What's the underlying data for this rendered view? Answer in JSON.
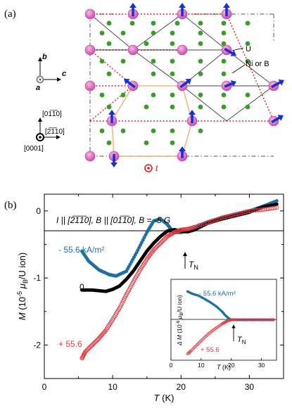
{
  "panel_a": {
    "label": "(a)",
    "axes_bc": {
      "b": "b",
      "c": "c",
      "a": "a"
    },
    "axes_hex": {
      "up": "[01̅1̅0]",
      "mid": "[2̅1̅10]",
      "out": "[0001]"
    },
    "legend": {
      "u": "U",
      "ni_b": "Ni or B"
    },
    "current": "t",
    "colors": {
      "uranium": "#e064b8",
      "nib": "#3a9a2a",
      "spin": "#1a2fd0",
      "hexagon": "#f2b77d",
      "dotted_red": "#e02020",
      "current": "#e02020"
    }
  },
  "panel_b": {
    "label": "(b)",
    "condition": "I || [2̅1̅1̅0], B || [01̅1̅0], B = -5 G",
    "labels": {
      "neg": "- 55.6 kA/m²",
      "zero": "0",
      "pos": "+ 55.6",
      "tn": "T",
      "tn_sub": "N"
    },
    "colors": {
      "neg": "#1f6fa3",
      "zero": "#000000",
      "pos": "#e0393e"
    }
  },
  "chart_data": [
    {
      "type": "scatter",
      "xlabel": "T (K)",
      "ylabel": "M (10⁻⁵ μB/U ion)",
      "xlim": [
        0,
        35
      ],
      "ylim": [
        -2.5,
        0.25
      ],
      "xticks": [
        "0",
        "10",
        "20",
        "30"
      ],
      "yticks": [
        "0",
        "-1",
        "-2"
      ],
      "series": [
        {
          "name": "- 55.6 kA/m²",
          "marker": "filled",
          "color": "#1f6fa3",
          "x": [
            5.5,
            6.5,
            8,
            9.5,
            10.5,
            12,
            13.5,
            15,
            16,
            17,
            18,
            18.5,
            19,
            20,
            21,
            22,
            23,
            24,
            26,
            28,
            30,
            32,
            34
          ],
          "y": [
            -0.6,
            -0.75,
            -0.88,
            -0.95,
            -0.97,
            -0.9,
            -0.62,
            -0.32,
            -0.15,
            -0.12,
            -0.2,
            -0.27,
            -0.32,
            -0.32,
            -0.3,
            -0.26,
            -0.2,
            -0.16,
            -0.1,
            -0.05,
            0.0,
            0.07,
            0.15
          ]
        },
        {
          "name": "0",
          "marker": "filled",
          "color": "#000000",
          "x": [
            5.5,
            7,
            9,
            10,
            11,
            12,
            13,
            14,
            15,
            16,
            17,
            18,
            19,
            20,
            21,
            22,
            24,
            26,
            28,
            30,
            32,
            34
          ],
          "y": [
            -1.18,
            -1.18,
            -1.2,
            -1.17,
            -1.12,
            -1.02,
            -0.9,
            -0.75,
            -0.6,
            -0.48,
            -0.38,
            -0.3,
            -0.28,
            -0.3,
            -0.31,
            -0.28,
            -0.18,
            -0.12,
            -0.07,
            -0.02,
            0.06,
            0.1
          ]
        },
        {
          "name": "+ 55.6",
          "marker": "open",
          "color": "#e0393e",
          "x": [
            5.5,
            6,
            7,
            8,
            9,
            10,
            11,
            12,
            13,
            14,
            15,
            16,
            17,
            18,
            19,
            20,
            21,
            22,
            24,
            26,
            28,
            30,
            32,
            34
          ],
          "y": [
            -2.2,
            -2.1,
            -2.0,
            -1.9,
            -1.78,
            -1.62,
            -1.45,
            -1.25,
            -1.06,
            -0.88,
            -0.72,
            -0.58,
            -0.48,
            -0.38,
            -0.32,
            -0.28,
            -0.27,
            -0.24,
            -0.17,
            -0.1,
            -0.05,
            0.0,
            0.02,
            0.05
          ]
        }
      ]
    },
    {
      "type": "scatter",
      "xlabel": "T (K)",
      "ylabel": "ΔM (10⁻⁶ μB/U ion)",
      "xlim": [
        0,
        35
      ],
      "ylim": [
        -9,
        9
      ],
      "xticks": [
        "0",
        "10",
        "20",
        "30"
      ],
      "series": [
        {
          "name": "-55.6 kA/m²",
          "marker": "filled",
          "color": "#1f6fa3",
          "x": [
            5.5,
            7,
            9,
            11,
            13,
            15,
            17,
            18,
            19,
            20,
            21,
            23,
            25,
            27,
            29,
            31,
            33,
            34
          ],
          "y": [
            6.3,
            5.8,
            5.4,
            4.7,
            3.9,
            3.0,
            1.8,
            1.0,
            0.4,
            0.0,
            0.0,
            0.0,
            0.0,
            0.0,
            0.0,
            0.0,
            0.0,
            0.0
          ]
        },
        {
          "name": "+ 55.6",
          "marker": "open",
          "color": "#e0393e",
          "x": [
            5.5,
            6.5,
            8,
            9.5,
            11,
            12.5,
            14,
            15.5,
            17,
            18,
            19,
            20,
            21,
            23,
            25,
            27,
            29,
            31,
            33,
            34
          ],
          "y": [
            -7.6,
            -7.0,
            -6.0,
            -5.0,
            -4.0,
            -3.1,
            -2.3,
            -1.6,
            -0.9,
            -0.5,
            -0.2,
            0.0,
            0.0,
            0.0,
            0.0,
            0.0,
            0.0,
            0.0,
            0.0,
            0.0
          ]
        }
      ]
    }
  ]
}
